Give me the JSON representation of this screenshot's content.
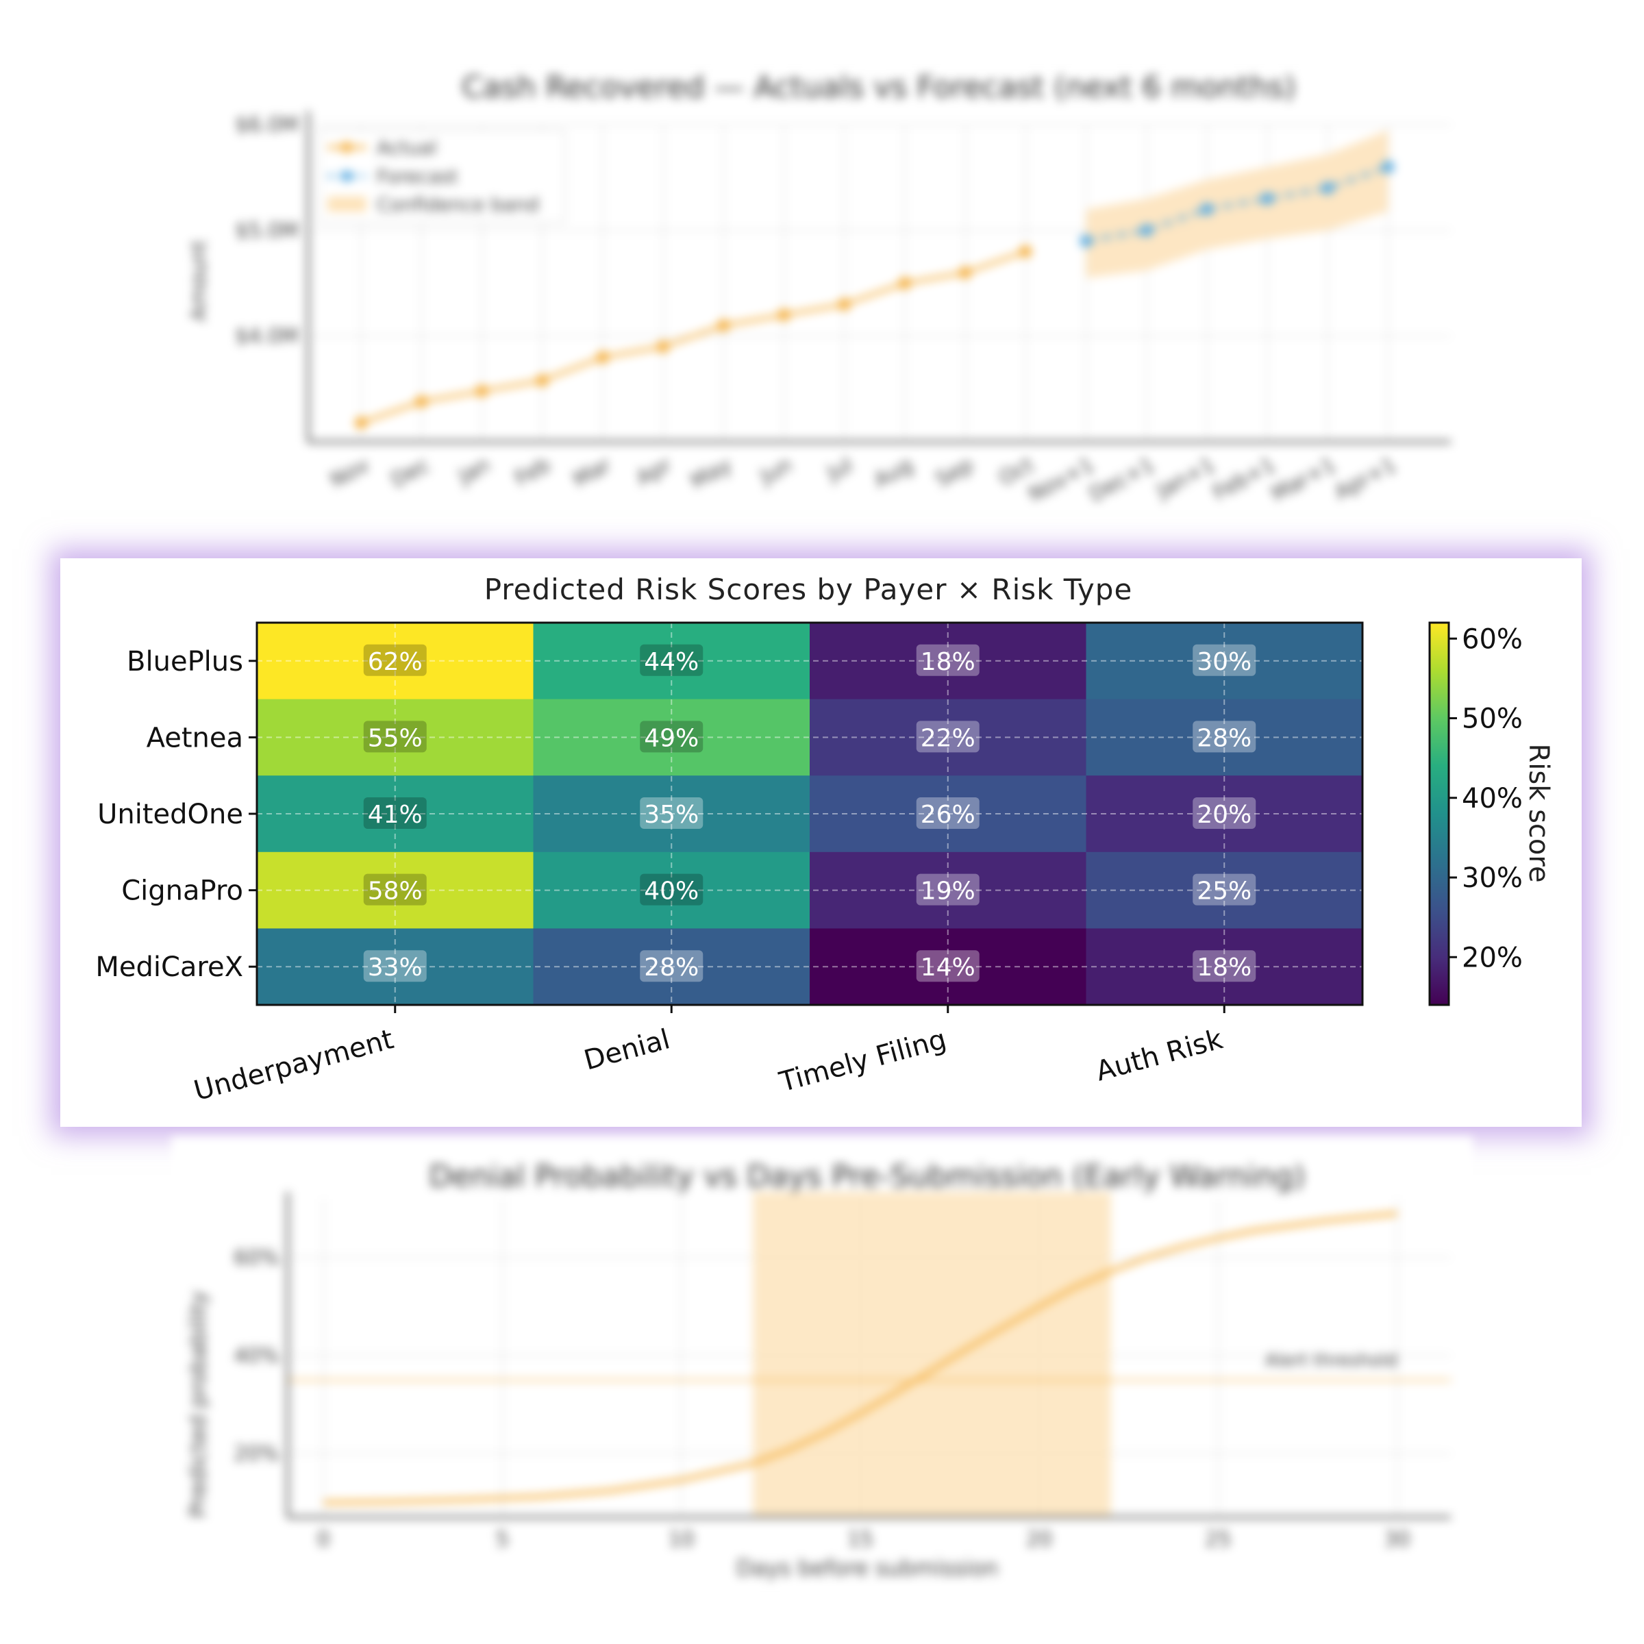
{
  "chart_data": [
    {
      "type": "line",
      "title": "Cash Recovered — Actuals vs Forecast (next 6 months)",
      "xlabel": "",
      "ylabel": "Amount",
      "categories": [
        "Nov",
        "Dec",
        "Jan",
        "Feb",
        "Mar",
        "Apr",
        "May",
        "Jun",
        "Jul",
        "Aug",
        "Sep",
        "Oct",
        "Nov+1",
        "Dec+1",
        "Jan+1",
        "Feb+1",
        "Mar+1",
        "Apr+1"
      ],
      "yticks": [
        "$4.0M",
        "$5.0M",
        "$6.0M"
      ],
      "ylim": [
        3.0,
        6.0
      ],
      "grid": true,
      "legend_position": "top-left",
      "series": [
        {
          "name": "Actual",
          "color": "#f5b041",
          "values": [
            3.18,
            3.38,
            3.48,
            3.58,
            3.8,
            3.9,
            4.1,
            4.2,
            4.3,
            4.5,
            4.6,
            4.8,
            null,
            null,
            null,
            null,
            null,
            null
          ]
        },
        {
          "name": "Forecast",
          "color": "#5dade2",
          "values": [
            null,
            null,
            null,
            null,
            null,
            null,
            null,
            null,
            null,
            null,
            null,
            null,
            4.9,
            5.0,
            5.2,
            5.3,
            5.4,
            5.6
          ]
        }
      ],
      "band": {
        "name": "Confidence band",
        "color": "#fde2b8",
        "lower": [
          4.55,
          4.62,
          4.82,
          4.92,
          5.0,
          5.18
        ],
        "upper": [
          5.2,
          5.3,
          5.48,
          5.6,
          5.72,
          5.95
        ]
      }
    },
    {
      "type": "heatmap",
      "title": "Predicted Risk Scores by Payer × Risk Type",
      "rows": [
        "BluePlus",
        "Aetnea",
        "UnitedOne",
        "CignaPro",
        "MediCareX"
      ],
      "columns": [
        "Underpayment",
        "Denial",
        "Timely Filing",
        "Auth Risk"
      ],
      "values": [
        [
          62,
          44,
          18,
          30
        ],
        [
          55,
          49,
          22,
          28
        ],
        [
          41,
          35,
          26,
          20
        ],
        [
          58,
          40,
          19,
          25
        ],
        [
          33,
          28,
          14,
          18
        ]
      ],
      "value_labels": [
        [
          "62%",
          "44%",
          "18%",
          "30%"
        ],
        [
          "55%",
          "49%",
          "22%",
          "28%"
        ],
        [
          "41%",
          "35%",
          "26%",
          "20%"
        ],
        [
          "58%",
          "40%",
          "19%",
          "25%"
        ],
        [
          "33%",
          "28%",
          "14%",
          "18%"
        ]
      ],
      "colorbar": {
        "label": "Risk score",
        "ticks": [
          "20%",
          "30%",
          "40%",
          "50%",
          "60%"
        ],
        "range": [
          14,
          62
        ],
        "colormap": "viridis"
      }
    },
    {
      "type": "line",
      "title": "Denial Probability vs Days Pre-Submission (Early Warning)",
      "xlabel": "Days before submission",
      "ylabel": "Predicted probability",
      "xlim": [
        -1,
        31.5
      ],
      "ylim": [
        0.07,
        0.72
      ],
      "xticks": [
        "0",
        "5",
        "10",
        "15",
        "20",
        "25",
        "30"
      ],
      "yticks": [
        "20%",
        "40%",
        "60%"
      ],
      "grid": true,
      "series": [
        {
          "name": "",
          "color": "#f5b041",
          "x": [
            0,
            2,
            4,
            6,
            8,
            10,
            12,
            13,
            14,
            15,
            16,
            17,
            18,
            19,
            20,
            21,
            22,
            23,
            24,
            25,
            26,
            28,
            30
          ],
          "y": [
            0.1,
            0.102,
            0.106,
            0.112,
            0.124,
            0.146,
            0.18,
            0.208,
            0.242,
            0.282,
            0.325,
            0.37,
            0.415,
            0.458,
            0.5,
            0.54,
            0.572,
            0.6,
            0.622,
            0.64,
            0.655,
            0.675,
            0.69
          ]
        }
      ],
      "threshold": {
        "label": "Alert threshold",
        "value": 0.35,
        "color": "#f5b041"
      },
      "shaded_region": {
        "x": [
          12,
          22
        ],
        "color": "#fde2b8"
      }
    }
  ]
}
